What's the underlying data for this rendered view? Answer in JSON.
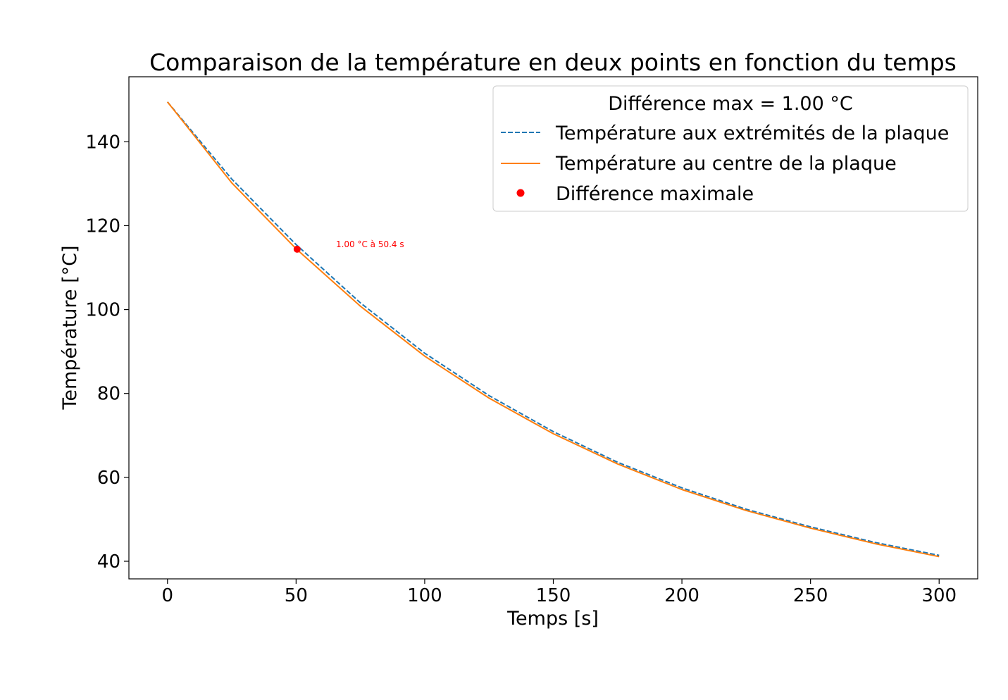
{
  "chart_data": {
    "type": "line",
    "title": "Comparaison de la température en deux points en fonction du temps",
    "xlabel": "Temps [s]",
    "ylabel": "Température [°C]",
    "xlim": [
      -15,
      315
    ],
    "ylim": [
      35.8,
      155.5
    ],
    "xticks": [
      0,
      50,
      100,
      150,
      200,
      250,
      300
    ],
    "yticks": [
      40,
      60,
      80,
      100,
      120,
      140
    ],
    "grid": false,
    "legend": {
      "placement": "top-right",
      "title": "Différence max = 1.00 °C"
    },
    "series": [
      {
        "name": "Température aux extrémités de la plaque",
        "color": "#1f77b4",
        "style": "dashed",
        "x": [
          0,
          25,
          50,
          75,
          100,
          125,
          150,
          175,
          200,
          225,
          250,
          275,
          300
        ],
        "y": [
          149.5,
          131.1,
          115.5,
          101.6,
          89.6,
          79.5,
          70.9,
          63.6,
          57.5,
          52.4,
          48.2,
          44.5,
          41.4
        ]
      },
      {
        "name": "Température au centre de la plaque",
        "color": "#ff7f0e",
        "style": "solid",
        "x": [
          0,
          25,
          50,
          75,
          100,
          125,
          150,
          175,
          200,
          225,
          250,
          275,
          300
        ],
        "y": [
          149.5,
          130.2,
          114.5,
          100.8,
          88.9,
          78.9,
          70.4,
          63.2,
          57.1,
          52.1,
          47.9,
          44.2,
          41.1
        ]
      }
    ],
    "markers": [
      {
        "name": "Différence maximale",
        "color": "#ff0000",
        "x": 50.4,
        "y": 114.4
      }
    ],
    "annotations": [
      {
        "text": "1.00 °C à 50.4 s",
        "x": 65.5,
        "y": 114.9,
        "color": "#ff0000"
      }
    ]
  }
}
